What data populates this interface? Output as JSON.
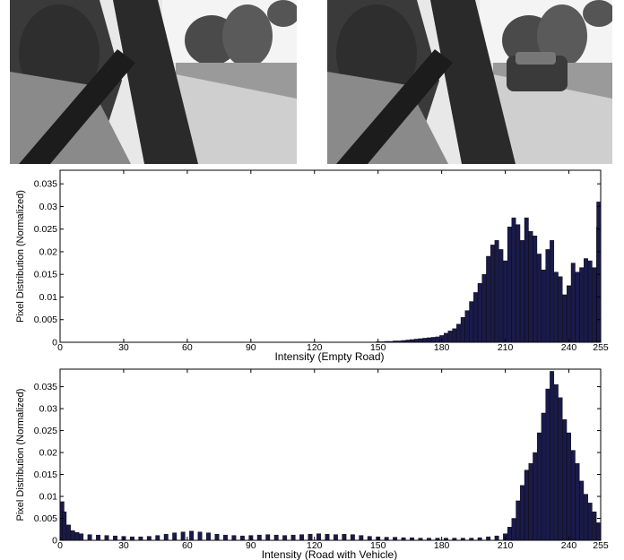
{
  "photos": [
    {
      "scene": "Driver in car seat, view through side window onto an empty road",
      "has_vehicle": false
    },
    {
      "scene": "Driver in car seat, view through side window with a passing vehicle",
      "has_vehicle": true
    }
  ],
  "chart_data": [
    {
      "type": "bar",
      "xlabel": "Intensity (Empty Road)",
      "ylabel": "Pixel Distribution (Normalized)",
      "xlim": [
        0,
        255
      ],
      "ylim": [
        0,
        0.038
      ],
      "xticks": [
        0,
        30,
        60,
        90,
        120,
        150,
        180,
        210,
        240,
        255
      ],
      "yticks": [
        0,
        0.005,
        0.01,
        0.015,
        0.02,
        0.025,
        0.03,
        0.035
      ],
      "ytick_labels": [
        "0",
        "0.005",
        "0.01",
        "0.015",
        "0.02",
        "0.025",
        "0.03",
        "0.035"
      ],
      "bar_color": "#1a1a4a",
      "x": [
        150,
        152,
        154,
        156,
        158,
        160,
        162,
        164,
        166,
        168,
        170,
        172,
        174,
        176,
        178,
        180,
        182,
        184,
        186,
        188,
        190,
        192,
        194,
        196,
        198,
        200,
        202,
        204,
        206,
        208,
        210,
        212,
        214,
        216,
        218,
        220,
        222,
        224,
        226,
        228,
        230,
        232,
        234,
        236,
        238,
        240,
        242,
        244,
        246,
        248,
        250,
        252,
        254,
        255
      ],
      "values": [
        0.0001,
        0.0001,
        0.0002,
        0.0002,
        0.0003,
        0.0003,
        0.0004,
        0.0005,
        0.0006,
        0.0007,
        0.0008,
        0.0009,
        0.001,
        0.0011,
        0.0012,
        0.0015,
        0.002,
        0.0025,
        0.003,
        0.004,
        0.0055,
        0.007,
        0.009,
        0.011,
        0.013,
        0.015,
        0.019,
        0.0215,
        0.0225,
        0.0205,
        0.018,
        0.0255,
        0.0275,
        0.026,
        0.0225,
        0.0275,
        0.0245,
        0.0235,
        0.0195,
        0.016,
        0.0205,
        0.0225,
        0.0155,
        0.0145,
        0.0105,
        0.0125,
        0.0175,
        0.0155,
        0.0165,
        0.0185,
        0.018,
        0.0165,
        0.0255,
        0.031
      ]
    },
    {
      "type": "bar",
      "xlabel": "Intensity (Road with Vehicle)",
      "ylabel": "Pixel Distribution (Normalized)",
      "xlim": [
        0,
        255
      ],
      "ylim": [
        0,
        0.039
      ],
      "xticks": [
        0,
        30,
        60,
        90,
        120,
        150,
        180,
        210,
        240,
        255
      ],
      "yticks": [
        0,
        0.005,
        0.01,
        0.015,
        0.02,
        0.025,
        0.03,
        0.035
      ],
      "ytick_labels": [
        "0",
        "0.005",
        "0.01",
        "0.015",
        "0.02",
        "0.025",
        "0.03",
        "0.035"
      ],
      "bar_color": "#1a1a4a",
      "x": [
        0,
        2,
        4,
        6,
        8,
        10,
        14,
        18,
        22,
        26,
        30,
        34,
        38,
        42,
        46,
        50,
        54,
        58,
        62,
        66,
        70,
        74,
        78,
        82,
        86,
        90,
        94,
        98,
        102,
        106,
        110,
        114,
        118,
        122,
        126,
        130,
        134,
        138,
        142,
        146,
        150,
        154,
        158,
        162,
        166,
        170,
        174,
        178,
        182,
        186,
        190,
        194,
        198,
        202,
        206,
        210,
        212,
        214,
        216,
        218,
        220,
        222,
        224,
        226,
        228,
        230,
        232,
        234,
        236,
        238,
        240,
        242,
        244,
        246,
        248,
        250,
        252,
        254
      ],
      "values": [
        0.0088,
        0.0065,
        0.0035,
        0.0022,
        0.0018,
        0.0015,
        0.0013,
        0.0012,
        0.0011,
        0.001,
        0.0009,
        0.0008,
        0.0008,
        0.0009,
        0.0011,
        0.0014,
        0.0017,
        0.0019,
        0.0021,
        0.0019,
        0.0017,
        0.0014,
        0.0012,
        0.0011,
        0.001,
        0.0011,
        0.0012,
        0.0013,
        0.0012,
        0.0011,
        0.0012,
        0.0013,
        0.0014,
        0.0015,
        0.0014,
        0.0013,
        0.0014,
        0.0013,
        0.0011,
        0.0009,
        0.0008,
        0.0007,
        0.0007,
        0.0006,
        0.0006,
        0.0005,
        0.0005,
        0.0005,
        0.0005,
        0.0005,
        0.0005,
        0.0005,
        0.0006,
        0.0008,
        0.001,
        0.0015,
        0.003,
        0.005,
        0.009,
        0.0125,
        0.016,
        0.0175,
        0.02,
        0.0245,
        0.029,
        0.0345,
        0.0385,
        0.0355,
        0.0325,
        0.0275,
        0.0245,
        0.0205,
        0.0175,
        0.0135,
        0.0105,
        0.0085,
        0.0065,
        0.004
      ]
    }
  ]
}
